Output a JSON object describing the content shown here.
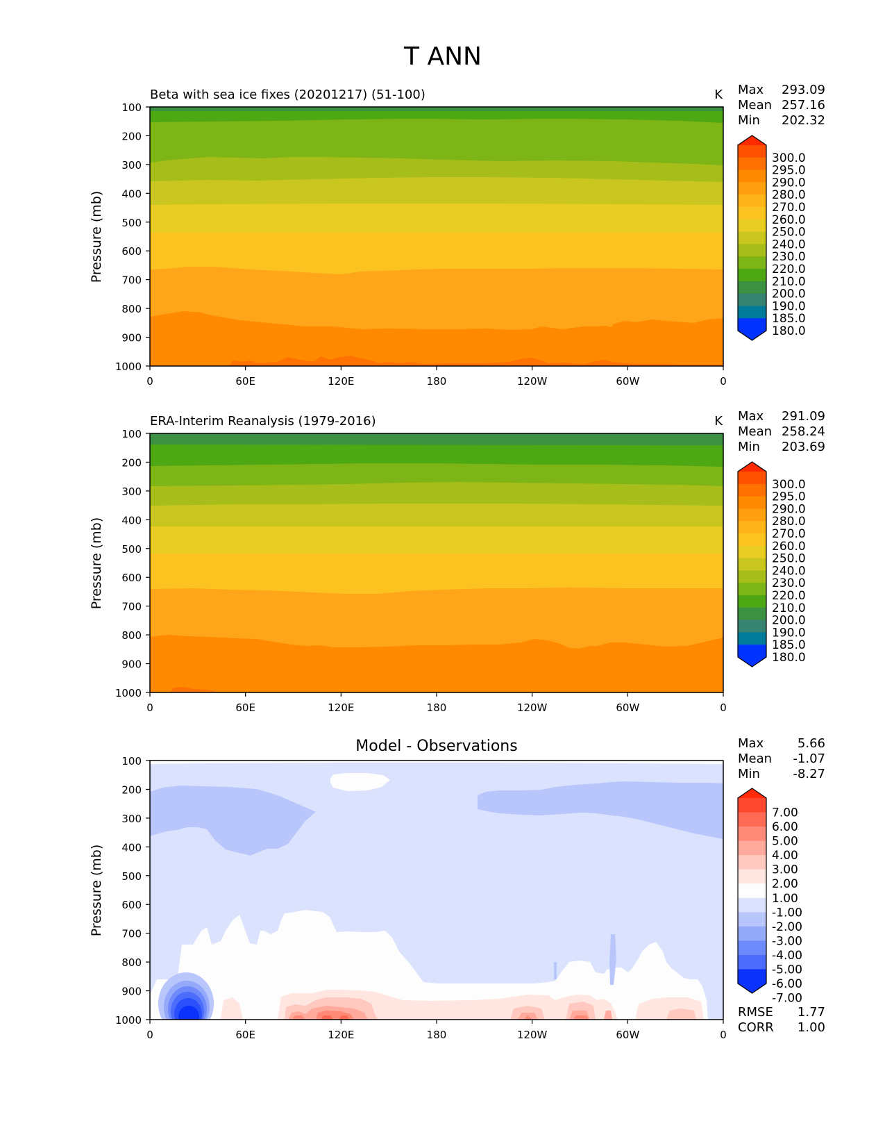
{
  "figure": {
    "title": "T ANN"
  },
  "axes_common": {
    "ylabel": "Pressure (mb)",
    "y_ticks": [
      "100",
      "200",
      "300",
      "400",
      "500",
      "600",
      "700",
      "800",
      "900",
      "1000"
    ],
    "x_ticks": [
      "0",
      "60E",
      "120E",
      "180",
      "120W",
      "60W",
      "0"
    ]
  },
  "panels": [
    {
      "title": "Beta with sea ice fixes (20201217) (51-100)",
      "units": "K",
      "stats": {
        "max_label": "Max",
        "max": "293.09",
        "mean_label": "Mean",
        "mean": "257.16",
        "min_label": "Min",
        "min": "202.32"
      },
      "colorbar": {
        "labels": [
          "300.0",
          "295.0",
          "290.0",
          "280.0",
          "270.0",
          "260.0",
          "250.0",
          "240.0",
          "230.0",
          "220.0",
          "210.0",
          "200.0",
          "190.0",
          "185.0",
          "180.0"
        ],
        "colors": [
          "#ff2a00",
          "#ff5200",
          "#ff7100",
          "#ff8a00",
          "#ffa010",
          "#ffb51a",
          "#fcc21f",
          "#e9cc22",
          "#c9c61f",
          "#a6bd1a",
          "#7db516",
          "#4ea814",
          "#3c9143",
          "#358370",
          "#007b9a",
          "#005ccf",
          "#0033ff"
        ]
      }
    },
    {
      "title": "ERA-Interim Reanalysis (1979-2016)",
      "units": "K",
      "stats": {
        "max_label": "Max",
        "max": "291.09",
        "mean_label": "Mean",
        "mean": "258.24",
        "min_label": "Min",
        "min": "203.69"
      },
      "colorbar": {
        "labels": [
          "300.0",
          "295.0",
          "290.0",
          "280.0",
          "270.0",
          "260.0",
          "250.0",
          "240.0",
          "230.0",
          "220.0",
          "210.0",
          "200.0",
          "190.0",
          "185.0",
          "180.0"
        ],
        "colors": [
          "#ff2a00",
          "#ff5200",
          "#ff7100",
          "#ff8a00",
          "#ffa010",
          "#ffb51a",
          "#fcc21f",
          "#e9cc22",
          "#c9c61f",
          "#a6bd1a",
          "#7db516",
          "#4ea814",
          "#3c9143",
          "#358370",
          "#007b9a",
          "#005ccf",
          "#0033ff"
        ]
      }
    },
    {
      "title": "Model - Observations",
      "units": "",
      "stats": {
        "max_label": "Max",
        "max": "5.66",
        "mean_label": "Mean",
        "mean": "-1.07",
        "min_label": "Min",
        "min": "-8.27"
      },
      "colorbar": {
        "labels": [
          "7.00",
          "6.00",
          "5.00",
          "4.00",
          "3.00",
          "2.00",
          "1.00",
          "-1.00",
          "-2.00",
          "-3.00",
          "-4.00",
          "-5.00",
          "-6.00",
          "-7.00"
        ],
        "colors": [
          "#ff2a0a",
          "#ff4a30",
          "#ff6a55",
          "#ff8a78",
          "#ffaa9c",
          "#ffc9bf",
          "#ffe6e0",
          "#fdfdfd",
          "#dbe2fd",
          "#b8c6fc",
          "#95a9fb",
          "#6f8bfb",
          "#4c6dfb",
          "#2a4ffb",
          "#0a32fb"
        ]
      },
      "rmse_label": "RMSE",
      "rmse": "1.77",
      "corr_label": "CORR",
      "corr": "1.00"
    }
  ],
  "chart_data": [
    {
      "type": "heatmap",
      "title": "Beta with sea ice fixes (20201217) (51-100)",
      "xlabel": "",
      "ylabel": "Pressure (mb)",
      "xlim": [
        0,
        360
      ],
      "ylim": [
        1000,
        100
      ],
      "units": "K",
      "contour_levels": [
        180,
        185,
        190,
        200,
        210,
        220,
        230,
        240,
        250,
        260,
        270,
        280,
        290,
        295,
        300
      ],
      "layers": [
        {
          "range": "200-210",
          "top_mb": 100,
          "bottom_mb": 150
        },
        {
          "range": "210-220",
          "top_mb": 150,
          "bottom_mb": 228
        },
        {
          "range": "220-230",
          "top_mb": 228,
          "bottom_mb": 290
        },
        {
          "range": "230-240",
          "top_mb": 290,
          "bottom_mb": 360
        },
        {
          "range": "240-250",
          "top_mb": 360,
          "bottom_mb": 440
        },
        {
          "range": "250-260",
          "top_mb": 440,
          "bottom_mb": 535
        },
        {
          "range": "260-270",
          "top_mb": 535,
          "bottom_mb": 670
        },
        {
          "range": "270-280",
          "top_mb": 670,
          "bottom_mb": 835
        },
        {
          "range": "280-290",
          "top_mb": 835,
          "bottom_mb": 1000
        },
        {
          "range": "290-295",
          "top_mb": 985,
          "bottom_mb": 1000
        }
      ],
      "stats": {
        "max": 293.09,
        "mean": 257.16,
        "min": 202.32
      }
    },
    {
      "type": "heatmap",
      "title": "ERA-Interim Reanalysis (1979-2016)",
      "xlabel": "",
      "ylabel": "Pressure (mb)",
      "xlim": [
        0,
        360
      ],
      "ylim": [
        1000,
        100
      ],
      "units": "K",
      "contour_levels": [
        180,
        185,
        190,
        200,
        210,
        220,
        230,
        240,
        250,
        260,
        270,
        280,
        290,
        295,
        300
      ],
      "layers": [
        {
          "range": "200-210",
          "top_mb": 100,
          "bottom_mb": 140
        },
        {
          "range": "210-220",
          "top_mb": 140,
          "bottom_mb": 213
        },
        {
          "range": "220-230",
          "top_mb": 213,
          "bottom_mb": 280
        },
        {
          "range": "230-240",
          "top_mb": 280,
          "bottom_mb": 350
        },
        {
          "range": "240-250",
          "top_mb": 350,
          "bottom_mb": 420
        },
        {
          "range": "250-260",
          "top_mb": 420,
          "bottom_mb": 515
        },
        {
          "range": "260-270",
          "top_mb": 515,
          "bottom_mb": 645
        },
        {
          "range": "270-280",
          "top_mb": 645,
          "bottom_mb": 830
        },
        {
          "range": "280-290",
          "top_mb": 830,
          "bottom_mb": 1000
        }
      ],
      "stats": {
        "max": 291.09,
        "mean": 258.24,
        "min": 203.69
      }
    },
    {
      "type": "heatmap",
      "title": "Model - Observations",
      "xlabel": "",
      "ylabel": "Pressure (mb)",
      "xlim": [
        0,
        360
      ],
      "ylim": [
        1000,
        100
      ],
      "contour_levels": [
        -7,
        -6,
        -5,
        -4,
        -3,
        -2,
        -1,
        1,
        2,
        3,
        4,
        5,
        6,
        7
      ],
      "background_range": "-2 to -1",
      "regions": [
        {
          "range": "-3 to -2",
          "lon": [
            0,
            105
          ],
          "mb": [
            200,
            430
          ]
        },
        {
          "range": "-3 to -2",
          "lon": [
            205,
            360
          ],
          "mb": [
            180,
            370
          ]
        },
        {
          "range": "-1 to 1",
          "lon": [
            113,
            150
          ],
          "mb": [
            150,
            220
          ]
        },
        {
          "range": "-1 to 1",
          "lon": [
            10,
            360
          ],
          "mb": [
            620,
            1000
          ]
        },
        {
          "range": "below -7",
          "lon": [
            12,
            35
          ],
          "mb": [
            880,
            1000
          ]
        },
        {
          "range": "1 to 5",
          "lon": [
            85,
            145
          ],
          "mb": [
            920,
            1000
          ]
        },
        {
          "range": "1 to 4",
          "lon": [
            230,
            290
          ],
          "mb": [
            920,
            1000
          ]
        },
        {
          "range": "1 to 3",
          "lon": [
            320,
            345
          ],
          "mb": [
            930,
            1000
          ]
        }
      ],
      "stats": {
        "max": 5.66,
        "mean": -1.07,
        "min": -8.27,
        "rmse": 1.77,
        "corr": 1.0
      }
    }
  ]
}
